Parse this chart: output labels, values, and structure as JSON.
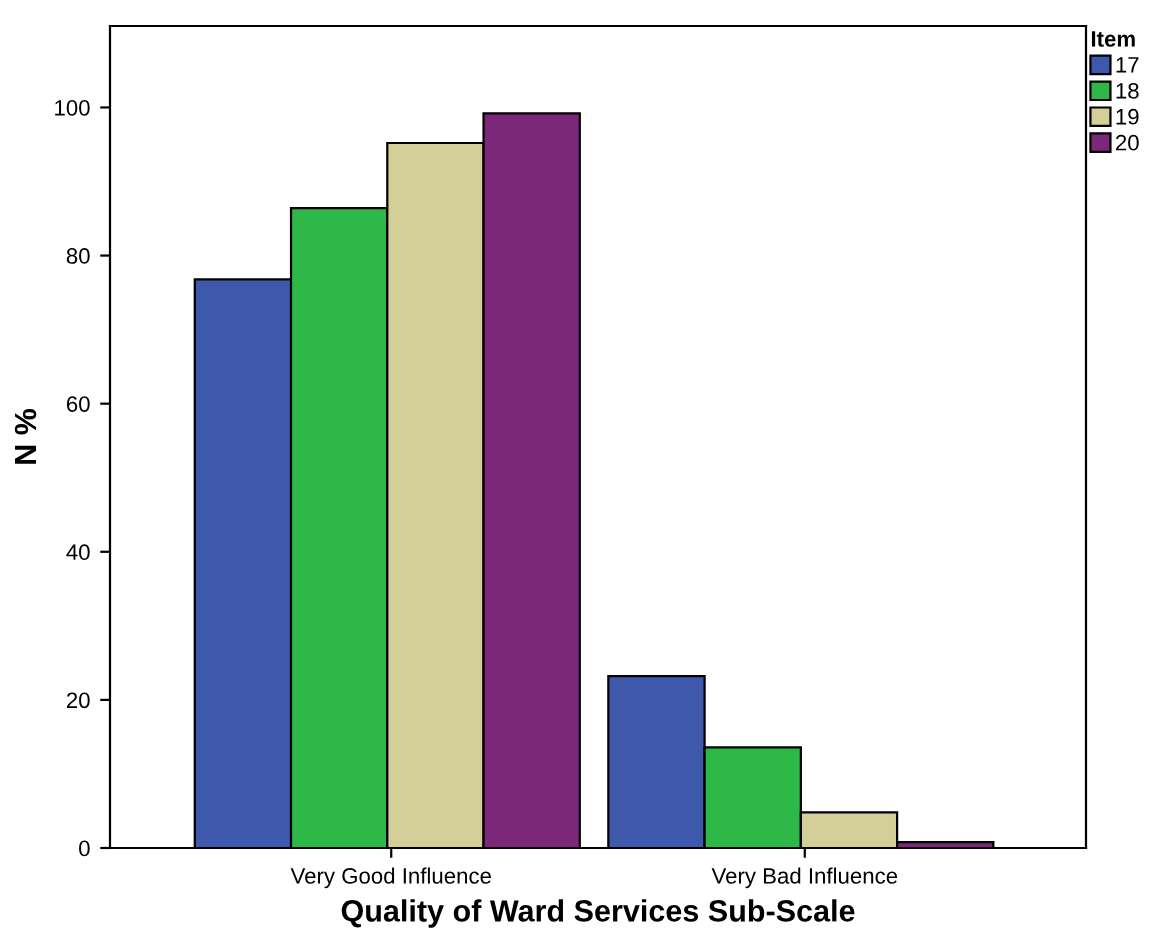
{
  "chart_data": {
    "type": "bar",
    "xlabel": "Quality of Ward Services Sub-Scale",
    "ylabel": "N %",
    "legend_title": "Item",
    "categories": [
      "Very Good Influence",
      "Very Bad Influence"
    ],
    "series": [
      {
        "name": "17",
        "color": "#3e58ac",
        "values": [
          76.8,
          23.2
        ]
      },
      {
        "name": "18",
        "color": "#2eb848",
        "values": [
          86.4,
          13.6
        ]
      },
      {
        "name": "19",
        "color": "#d4cf98",
        "values": [
          95.2,
          4.8
        ]
      },
      {
        "name": "20",
        "color": "#7b287a",
        "values": [
          99.2,
          0.8
        ]
      }
    ],
    "ylim": [
      0,
      111
    ],
    "yticks": [
      0,
      20,
      40,
      60,
      80,
      100
    ],
    "grid": false,
    "legend": "top right"
  }
}
